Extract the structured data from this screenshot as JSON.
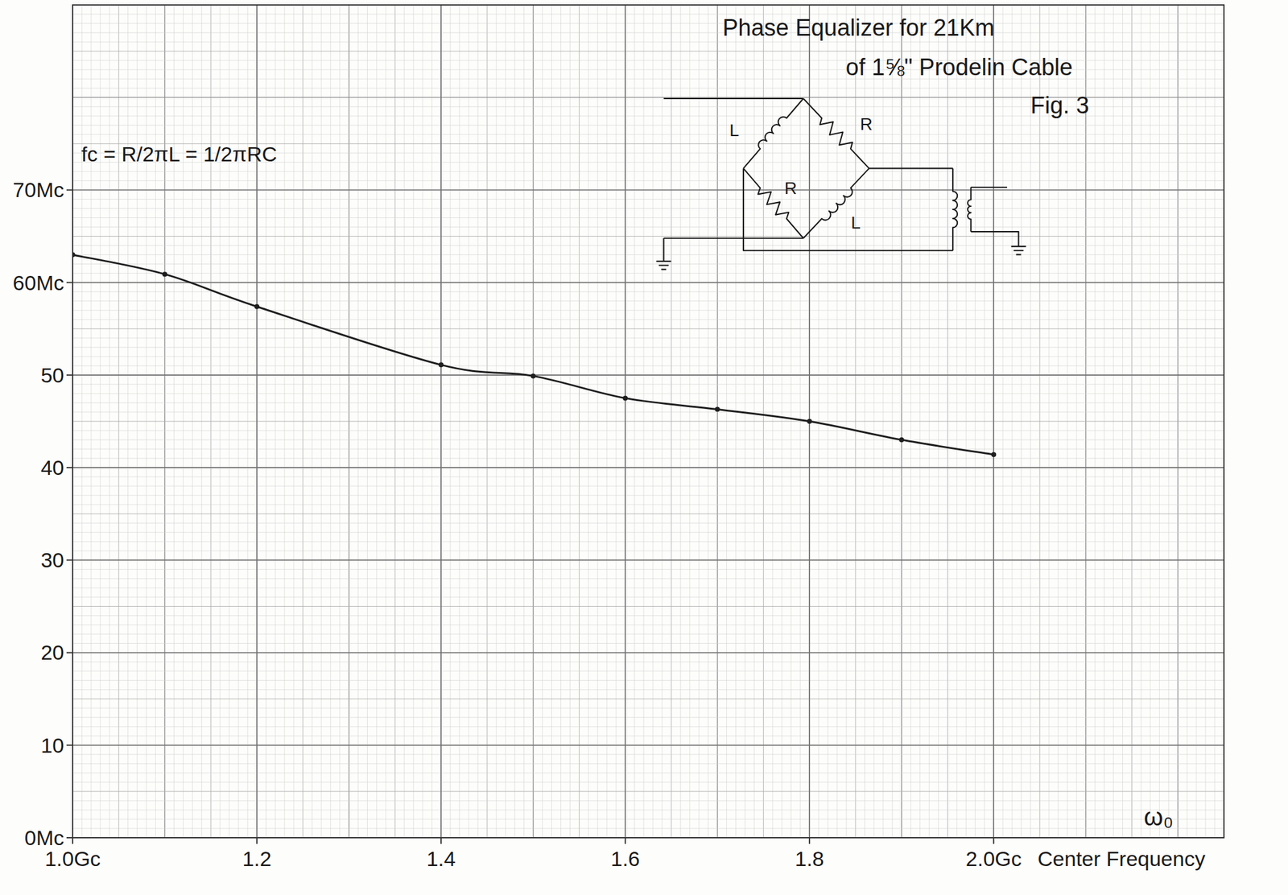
{
  "chart_data": {
    "type": "line",
    "title": "Phase Equalizer for 21Km",
    "subtitle": "of 1⅝\" Prodelin Cable",
    "x_label": "Center Frequency",
    "annotations": [
      "Fig. 3",
      "fc = R/2πL = 1/2πRC",
      "ω₀"
    ],
    "x": [
      1.0,
      1.1,
      1.2,
      1.4,
      1.5,
      1.6,
      1.7,
      1.8,
      1.9,
      2.0
    ],
    "values": [
      63.0,
      60.9,
      57.4,
      51.1,
      49.9,
      47.5,
      46.3,
      45.0,
      43.0,
      41.4
    ],
    "color": "#1f1f1f",
    "marker": "dot",
    "line_style": "solid",
    "xlim": [
      1.0,
      2.25
    ],
    "ylim": [
      0,
      90
    ],
    "xticks": [
      {
        "value": 1.0,
        "label": "1.0Gc"
      },
      1.2,
      1.4,
      1.6,
      1.8,
      {
        "value": 2.0,
        "label": "2.0Gc"
      }
    ],
    "yticks": [
      {
        "value": 0,
        "label": "0Mc"
      },
      10,
      20,
      30,
      40,
      50,
      {
        "value": 60,
        "label": "60Mc"
      },
      {
        "value": 70,
        "label": "70Mc"
      }
    ],
    "grid": true
  },
  "circuit": {
    "labels": [
      "L",
      "R",
      "R",
      "L"
    ]
  }
}
